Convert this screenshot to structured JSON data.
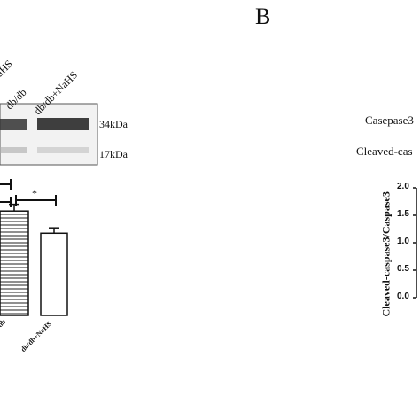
{
  "panel_b": {
    "letter": "B",
    "row_labels": [
      "Casepase3",
      "Cleaved-cas"
    ],
    "chart_data": {
      "type": "bar",
      "categories": [],
      "values": [],
      "ylabel": "Cleaved-caspase3/Caspase3",
      "ylim": [
        0.0,
        2.0
      ],
      "yticks": [
        "2.0",
        "1.5",
        "1.0",
        "0.5",
        "0.0"
      ]
    }
  },
  "panel_a": {
    "lane_labels": [
      "+NaHS",
      "db/db",
      "db/db+NaHS"
    ],
    "marker_labels": [
      "34kDa",
      "17kDa"
    ],
    "chart_data": {
      "type": "bar",
      "categories": [
        "db/db",
        "db/db+NaHS"
      ],
      "values": [
        1.55,
        1.22
      ],
      "errors": [
        0.1,
        0.08
      ],
      "significance": "*"
    }
  }
}
